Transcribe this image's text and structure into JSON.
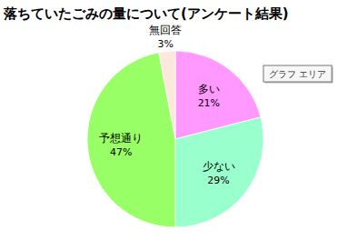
{
  "chart_data": {
    "type": "pie",
    "title": "落ちていたごみの量について(アンケート結果)",
    "categories": [
      "多い",
      "少ない",
      "予想通り",
      "無回答"
    ],
    "values": [
      21,
      29,
      47,
      3
    ],
    "value_labels": [
      "21%",
      "29%",
      "47%",
      "3%"
    ],
    "colors": [
      "#ff99ff",
      "#99ffcc",
      "#99ff66",
      "#fce9dc"
    ],
    "data_labels": true,
    "annotations": [
      "グラフ エリア"
    ]
  }
}
